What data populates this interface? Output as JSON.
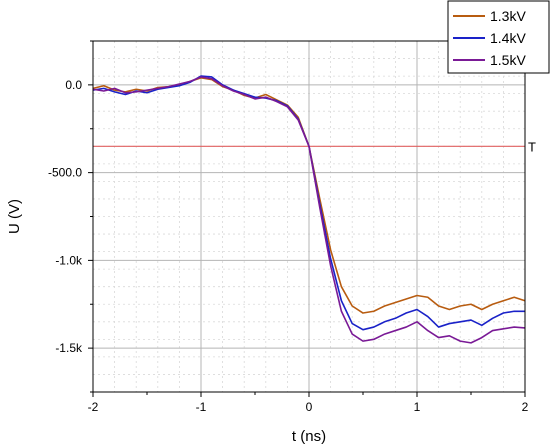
{
  "chart_data": {
    "type": "line",
    "xlabel": "t (ns)",
    "ylabel": "U (V)",
    "xlim": [
      -2,
      2
    ],
    "ylim": [
      -1750,
      250
    ],
    "x_ticks": [
      -2,
      -1,
      0,
      1,
      2
    ],
    "x_tick_labels": [
      "-2",
      "-1",
      "0",
      "1",
      "2"
    ],
    "y_ticks": [
      0,
      -500,
      -1000,
      -1500
    ],
    "y_tick_labels": [
      "0.0",
      "-500.0",
      "-1.0k",
      "-1.5k"
    ],
    "grid": true,
    "legend_position": "top-right",
    "threshold": {
      "label": "T",
      "y": -350,
      "color": "#e06060"
    },
    "series": [
      {
        "name": "1.3kV",
        "color": "#b85c10",
        "x": [
          -2,
          -1.9,
          -1.8,
          -1.7,
          -1.6,
          -1.5,
          -1.4,
          -1.3,
          -1.2,
          -1.1,
          -1.0,
          -0.9,
          -0.8,
          -0.7,
          -0.6,
          -0.5,
          -0.4,
          -0.3,
          -0.2,
          -0.1,
          0.0,
          0.1,
          0.2,
          0.3,
          0.4,
          0.5,
          0.6,
          0.7,
          0.8,
          0.9,
          1.0,
          1.1,
          1.2,
          1.3,
          1.4,
          1.5,
          1.6,
          1.7,
          1.8,
          1.9,
          2.0
        ],
        "y": [
          -20,
          -5,
          -30,
          -40,
          -25,
          -35,
          -15,
          -10,
          0,
          20,
          40,
          30,
          -10,
          -30,
          -60,
          -75,
          -55,
          -85,
          -115,
          -185,
          -350,
          -650,
          -940,
          -1150,
          -1260,
          -1300,
          -1290,
          -1260,
          -1240,
          -1220,
          -1200,
          -1210,
          -1260,
          -1280,
          -1260,
          -1250,
          -1280,
          -1250,
          -1230,
          -1210,
          -1230
        ]
      },
      {
        "name": "1.4kV",
        "color": "#1a22c8",
        "x": [
          -2,
          -1.9,
          -1.8,
          -1.7,
          -1.6,
          -1.5,
          -1.4,
          -1.3,
          -1.2,
          -1.1,
          -1.0,
          -0.9,
          -0.8,
          -0.7,
          -0.6,
          -0.5,
          -0.4,
          -0.3,
          -0.2,
          -0.1,
          0.0,
          0.1,
          0.2,
          0.3,
          0.4,
          0.5,
          0.6,
          0.7,
          0.8,
          0.9,
          1.0,
          1.1,
          1.2,
          1.3,
          1.4,
          1.5,
          1.6,
          1.7,
          1.8,
          1.9,
          2.0
        ],
        "y": [
          -30,
          -20,
          -40,
          -55,
          -35,
          -45,
          -25,
          -15,
          -5,
          15,
          50,
          45,
          0,
          -30,
          -50,
          -70,
          -75,
          -90,
          -120,
          -195,
          -350,
          -680,
          -990,
          -1230,
          -1360,
          -1395,
          -1380,
          -1350,
          -1330,
          -1300,
          -1280,
          -1320,
          -1380,
          -1360,
          -1350,
          -1340,
          -1370,
          -1330,
          -1300,
          -1290,
          -1290
        ]
      },
      {
        "name": "1.5kV",
        "color": "#7a1a96",
        "x": [
          -2,
          -1.9,
          -1.8,
          -1.7,
          -1.6,
          -1.5,
          -1.4,
          -1.3,
          -1.2,
          -1.1,
          -1.0,
          -0.9,
          -0.8,
          -0.7,
          -0.6,
          -0.5,
          -0.4,
          -0.3,
          -0.2,
          -0.1,
          0.0,
          0.1,
          0.2,
          0.3,
          0.4,
          0.5,
          0.6,
          0.7,
          0.8,
          0.9,
          1.0,
          1.1,
          1.2,
          1.3,
          1.4,
          1.5,
          1.6,
          1.7,
          1.8,
          1.9,
          2.0
        ],
        "y": [
          -25,
          -35,
          -20,
          -45,
          -40,
          -30,
          -20,
          -10,
          5,
          20,
          45,
          35,
          -5,
          -35,
          -55,
          -80,
          -70,
          -95,
          -125,
          -200,
          -350,
          -700,
          -1030,
          -1290,
          -1420,
          -1460,
          -1450,
          -1420,
          -1400,
          -1380,
          -1350,
          -1400,
          -1440,
          -1430,
          -1460,
          -1470,
          -1440,
          -1400,
          -1390,
          -1380,
          -1385
        ]
      }
    ]
  }
}
